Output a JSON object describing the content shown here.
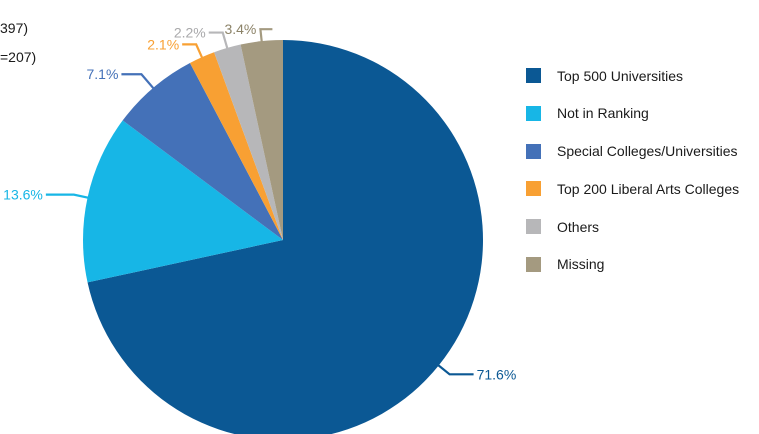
{
  "header_fragments": [
    "397)",
    "=207)"
  ],
  "chart_data": {
    "type": "pie",
    "title": "",
    "categories": [
      "Top 500 Universities",
      "Not in Ranking",
      "Special Colleges/Universities",
      "Top 200 Liberal Arts  Colleges",
      "Others",
      "Missing"
    ],
    "values": [
      71.6,
      13.6,
      7.1,
      2.1,
      2.2,
      3.4
    ],
    "data_labels": [
      "71.6%",
      "13.6%",
      "7.1%",
      "2.1%",
      "2.2%",
      "3.4%"
    ],
    "colors": [
      "#0b5894",
      "#17b6e6",
      "#4471b8",
      "#f8a033",
      "#b7b7b9",
      "#a49a80"
    ],
    "legend": "right"
  }
}
